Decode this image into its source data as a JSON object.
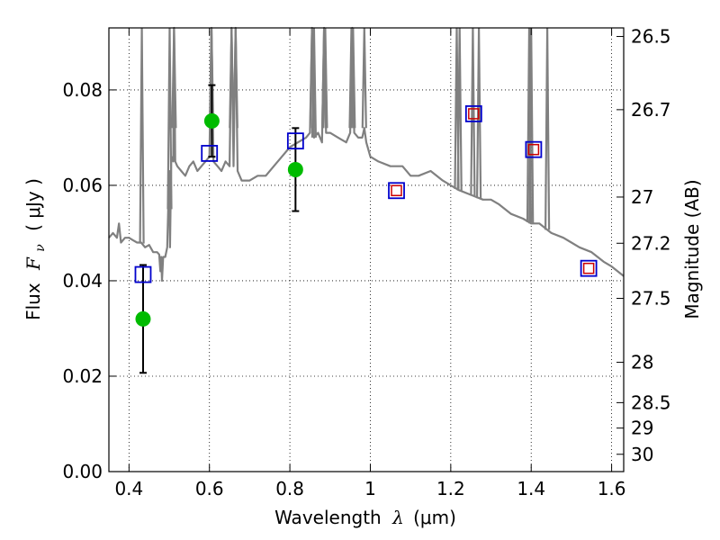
{
  "chart_data": {
    "type": "scatter",
    "xlabel": "Wavelength λ (μm)",
    "xlabel_parts": {
      "prefix": "Wavelength",
      "symbol": "λ",
      "unit": "(μm)"
    },
    "ylabel": "Flux F_ν (μJy)",
    "ylabel_parts": {
      "prefix": "Flux",
      "symbol": "F",
      "subscript": "ν",
      "unit": "( μJy )"
    },
    "y2label": "Magnitude (AB)",
    "xlim": [
      0.35,
      1.63
    ],
    "ylim": [
      0.0,
      0.093
    ],
    "grid": true,
    "x_ticks": [
      {
        "value": 0.4,
        "label": "0.4"
      },
      {
        "value": 0.6,
        "label": "0.6"
      },
      {
        "value": 0.8,
        "label": "0.8"
      },
      {
        "value": 1.0,
        "label": "1"
      },
      {
        "value": 1.2,
        "label": "1.2"
      },
      {
        "value": 1.4,
        "label": "1.4"
      },
      {
        "value": 1.6,
        "label": "1.6"
      }
    ],
    "y_ticks": [
      {
        "value": 0.0,
        "label": "0.00"
      },
      {
        "value": 0.02,
        "label": "0.02"
      },
      {
        "value": 0.04,
        "label": "0.04"
      },
      {
        "value": 0.06,
        "label": "0.06"
      },
      {
        "value": 0.08,
        "label": "0.08"
      }
    ],
    "y2_ticks": [
      {
        "value": 26.5,
        "label": "26.5"
      },
      {
        "value": 26.7,
        "label": "26.7"
      },
      {
        "value": 27.0,
        "label": "27"
      },
      {
        "value": 27.2,
        "label": "27.2"
      },
      {
        "value": 27.5,
        "label": "27.5"
      },
      {
        "value": 28.0,
        "label": "28"
      },
      {
        "value": 28.5,
        "label": "28.5"
      },
      {
        "value": 29.0,
        "label": "29"
      },
      {
        "value": 30.0,
        "label": "30"
      }
    ],
    "series": [
      {
        "name": "model spectrum",
        "kind": "line",
        "color": "#808080",
        "x": [
          0.35,
          0.36,
          0.37,
          0.375,
          0.38,
          0.39,
          0.4,
          0.41,
          0.42,
          0.43,
          0.44,
          0.45,
          0.46,
          0.47,
          0.475,
          0.478,
          0.48,
          0.482,
          0.485,
          0.49,
          0.495,
          0.5,
          0.502,
          0.505,
          0.51,
          0.512,
          0.515,
          0.52,
          0.53,
          0.54,
          0.55,
          0.56,
          0.57,
          0.58,
          0.59,
          0.6,
          0.605,
          0.61,
          0.62,
          0.63,
          0.64,
          0.65,
          0.655,
          0.66,
          0.665,
          0.67,
          0.68,
          0.7,
          0.72,
          0.74,
          0.76,
          0.78,
          0.8,
          0.82,
          0.84,
          0.85,
          0.855,
          0.86,
          0.87,
          0.88,
          0.885,
          0.89,
          0.9,
          0.92,
          0.94,
          0.95,
          0.955,
          0.96,
          0.97,
          0.98,
          0.985,
          0.99,
          1.0,
          1.02,
          1.05,
          1.08,
          1.1,
          1.12,
          1.15,
          1.18,
          1.2,
          1.22,
          1.25,
          1.28,
          1.3,
          1.32,
          1.35,
          1.38,
          1.4,
          1.42,
          1.45,
          1.48,
          1.5,
          1.52,
          1.55,
          1.58,
          1.6,
          1.63
        ],
        "y": [
          0.049,
          0.05,
          0.049,
          0.052,
          0.048,
          0.049,
          0.049,
          0.0485,
          0.048,
          0.048,
          0.047,
          0.0475,
          0.046,
          0.046,
          0.0455,
          0.042,
          0.045,
          0.04,
          0.045,
          0.045,
          0.047,
          0.063,
          0.047,
          0.066,
          0.065,
          0.093,
          0.065,
          0.064,
          0.063,
          0.062,
          0.064,
          0.065,
          0.063,
          0.064,
          0.065,
          0.066,
          0.093,
          0.065,
          0.064,
          0.063,
          0.065,
          0.064,
          0.093,
          0.064,
          0.093,
          0.063,
          0.061,
          0.061,
          0.062,
          0.062,
          0.064,
          0.066,
          0.068,
          0.069,
          0.07,
          0.071,
          0.093,
          0.07,
          0.071,
          0.069,
          0.093,
          0.071,
          0.071,
          0.07,
          0.069,
          0.071,
          0.093,
          0.071,
          0.07,
          0.07,
          0.072,
          0.069,
          0.066,
          0.065,
          0.064,
          0.064,
          0.062,
          0.062,
          0.063,
          0.061,
          0.06,
          0.059,
          0.058,
          0.057,
          0.057,
          0.056,
          0.054,
          0.053,
          0.052,
          0.052,
          0.05,
          0.049,
          0.048,
          0.047,
          0.046,
          0.044,
          0.043,
          0.041
        ],
        "spikes": [
          0.432,
          0.501,
          0.512,
          0.605,
          0.655,
          0.665,
          0.855,
          0.86,
          0.885,
          0.888,
          0.953,
          0.957,
          0.985,
          1.215,
          1.222,
          1.255,
          1.27,
          1.395,
          1.4,
          1.44
        ]
      },
      {
        "name": "observed (green)",
        "kind": "scatter-errorbar",
        "color": "#00bb00",
        "x": [
          0.435,
          0.606,
          0.814
        ],
        "y": [
          0.032,
          0.0735,
          0.0633
        ],
        "err": [
          0.0113,
          0.0075,
          0.0087
        ]
      },
      {
        "name": "model photometry (blue squares)",
        "kind": "square",
        "color": "#0000cc",
        "x": [
          0.435,
          0.6,
          0.814,
          1.065,
          1.257,
          1.406,
          1.543
        ],
        "y": [
          0.0413,
          0.0667,
          0.0693,
          0.0589,
          0.075,
          0.0675,
          0.0426
        ]
      },
      {
        "name": "model photometry (red squares)",
        "kind": "square",
        "color": "#cc0000",
        "x": [
          1.065,
          1.257,
          1.406,
          1.543
        ],
        "y": [
          0.0589,
          0.075,
          0.0675,
          0.0426
        ]
      }
    ]
  }
}
